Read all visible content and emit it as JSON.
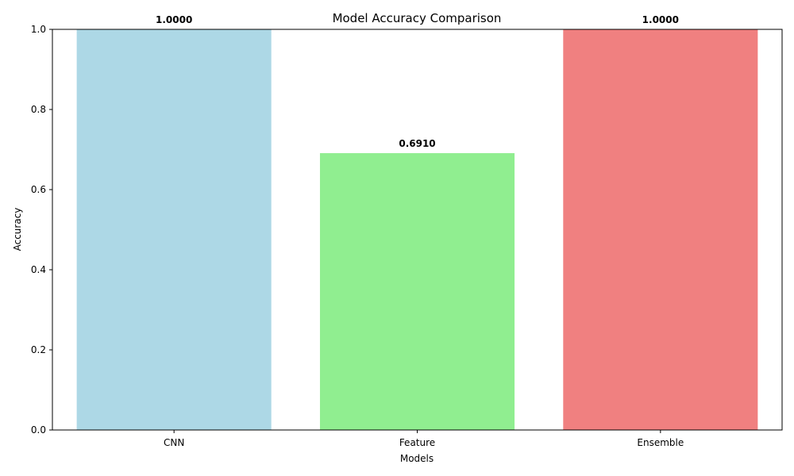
{
  "chart_data": {
    "type": "bar",
    "title": "Model Accuracy Comparison",
    "xlabel": "Models",
    "ylabel": "Accuracy",
    "categories": [
      "CNN",
      "Feature",
      "Ensemble"
    ],
    "values": [
      1.0,
      0.691,
      1.0
    ],
    "value_labels": [
      "1.0000",
      "0.6910",
      "1.0000"
    ],
    "colors": [
      "#add8e6",
      "#90ee90",
      "#f08080"
    ],
    "ylim": [
      0,
      1.0
    ],
    "yticks": [
      0.0,
      0.2,
      0.4,
      0.6,
      0.8,
      1.0
    ],
    "ytick_labels": [
      "0.0",
      "0.2",
      "0.4",
      "0.6",
      "0.8",
      "1.0"
    ],
    "grid": false,
    "legend": "none"
  }
}
